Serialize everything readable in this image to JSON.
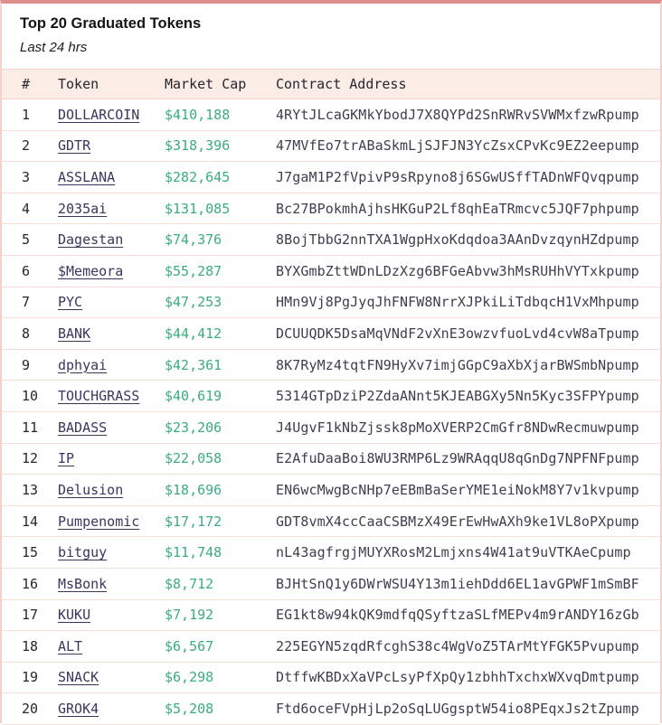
{
  "header": {
    "title": "Top 20 Graduated Tokens",
    "subtitle": "Last 24 hrs"
  },
  "table": {
    "columns": [
      "#",
      "Token",
      "Market Cap",
      "Contract Address"
    ],
    "rows": [
      {
        "rank": "1",
        "token": "DOLLARCOIN",
        "market_cap": "$410,188",
        "contract": "4RYtJLcaGKMkYbodJ7X8QYPd2SnRWRvSVWMxfzwRpump"
      },
      {
        "rank": "2",
        "token": "GDTR",
        "market_cap": "$318,396",
        "contract": "47MVfEo7trABaSkmLjSJFJN3YcZsxCPvKc9EZ2eepump"
      },
      {
        "rank": "3",
        "token": "ASSLANA",
        "market_cap": "$282,645",
        "contract": "J7gaM1P2fVpivP9sRpyno8j6SGwUSffTADnWFQvqpump"
      },
      {
        "rank": "4",
        "token": "2035ai",
        "market_cap": "$131,085",
        "contract": "Bc27BPokmhAjhsHKGuP2Lf8qhEaTRmcvc5JQF7phpump"
      },
      {
        "rank": "5",
        "token": "Dagestan",
        "market_cap": "$74,376",
        "contract": "8BojTbbG2nnTXA1WgpHxoKdqdoa3AAnDvzqynHZdpump"
      },
      {
        "rank": "6",
        "token": "$Memeora",
        "market_cap": "$55,287",
        "contract": "BYXGmbZttWDnLDzXzg6BFGeAbvw3hMsRUHhVYTxkpump"
      },
      {
        "rank": "7",
        "token": "PYC",
        "market_cap": "$47,253",
        "contract": "HMn9Vj8PgJyqJhFNFW8NrrXJPkiLiTdbqcH1VxMhpump"
      },
      {
        "rank": "8",
        "token": "BANK",
        "market_cap": "$44,412",
        "contract": "DCUUQDK5DsaMqVNdF2vXnE3owzvfuoLvd4cvW8aTpump"
      },
      {
        "rank": "9",
        "token": "dphyai",
        "market_cap": "$42,361",
        "contract": "8K7RyMz4tqtFN9HyXv7imjGGpC9aXbXjarBWSmbNpump"
      },
      {
        "rank": "10",
        "token": "TOUCHGRASS",
        "market_cap": "$40,619",
        "contract": "5314GTpDziP2ZdaANnt5KJEABGXy5Nn5Kyc3SFPYpump"
      },
      {
        "rank": "11",
        "token": "BADASS",
        "market_cap": "$23,206",
        "contract": "J4UgvF1kNbZjssk8pMoXVERP2CmGfr8NDwRecmuwpump"
      },
      {
        "rank": "12",
        "token": "IP",
        "market_cap": "$22,058",
        "contract": "E2AfuDaaBoi8WU3RMP6Lz9WRAqqU8qGnDg7NPFNFpump"
      },
      {
        "rank": "13",
        "token": "Delusion",
        "market_cap": "$18,696",
        "contract": "EN6wcMwgBcNHp7eEBmBaSerYME1eiNokM8Y7v1kvpump"
      },
      {
        "rank": "14",
        "token": "Pumpenomic",
        "market_cap": "$17,172",
        "contract": "GDT8vmX4ccCaaCSBMzX49ErEwHwAXh9ke1VL8oPXpump"
      },
      {
        "rank": "15",
        "token": "bitguy",
        "market_cap": "$11,748",
        "contract": "nL43agfrgjMUYXRosM2Lmjxns4W41at9uVTKAeCpump"
      },
      {
        "rank": "16",
        "token": "MsBonk",
        "market_cap": "$8,712",
        "contract": "BJHtSnQ1y6DWrWSU4Y13m1iehDdd6EL1avGPWF1mSmBF"
      },
      {
        "rank": "17",
        "token": "KUKU",
        "market_cap": "$7,192",
        "contract": "EG1kt8w94kQK9mdfqQSyftzaSLfMEPv4m9rANDY16zGb"
      },
      {
        "rank": "18",
        "token": "ALT",
        "market_cap": "$6,567",
        "contract": "225EGYN5zqdRfcghS38c4WgVoZ5TArMtYFGK5Pvupump"
      },
      {
        "rank": "19",
        "token": "SNACK",
        "market_cap": "$6,298",
        "contract": "DtffwKBDxXaVPcLsyPfXpQy1zbhhTxchxWXvqDmtpump"
      },
      {
        "rank": "20",
        "token": "GROK4",
        "market_cap": "$5,208",
        "contract": "Ftd6oceFVpHjLp2oSqLUGgsptW54io8PEqxJs2tZpump"
      }
    ]
  },
  "colors": {
    "top_accent_bar": "#dd8f8d",
    "panel_border": "#f5d3cc",
    "header_row_bg": "#fbece6",
    "row_divider": "#f7ded8",
    "token_link": "#39365f",
    "market_cap_green": "#3bad7e",
    "address_text": "#3e3e4d"
  }
}
